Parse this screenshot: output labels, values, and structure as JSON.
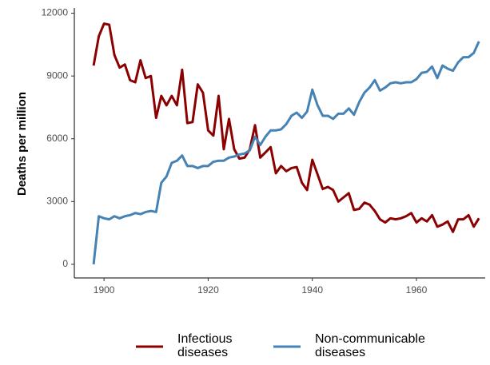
{
  "chart_data": {
    "type": "line",
    "ylabel": "Deaths per million",
    "x": [
      1898,
      1899,
      1900,
      1901,
      1902,
      1903,
      1904,
      1905,
      1906,
      1907,
      1908,
      1909,
      1910,
      1911,
      1912,
      1913,
      1914,
      1915,
      1916,
      1917,
      1918,
      1919,
      1920,
      1921,
      1922,
      1923,
      1924,
      1925,
      1926,
      1927,
      1928,
      1929,
      1930,
      1931,
      1932,
      1933,
      1934,
      1935,
      1936,
      1937,
      1938,
      1939,
      1940,
      1941,
      1942,
      1943,
      1944,
      1945,
      1946,
      1947,
      1948,
      1949,
      1950,
      1951,
      1952,
      1953,
      1954,
      1955,
      1956,
      1957,
      1958,
      1959,
      1960,
      1961,
      1962,
      1963,
      1964,
      1965,
      1966,
      1967,
      1968,
      1969,
      1970,
      1971,
      1972
    ],
    "series": [
      {
        "name": "Infectious diseases",
        "color": "#8b0000",
        "values": [
          9500,
          10900,
          11500,
          11450,
          10000,
          9400,
          9550,
          8800,
          8700,
          9750,
          8900,
          9000,
          7000,
          8050,
          7600,
          8050,
          7600,
          9300,
          6750,
          6800,
          8600,
          8200,
          6400,
          6150,
          8050,
          5500,
          6950,
          5500,
          5050,
          5100,
          5500,
          6650,
          5100,
          5350,
          5600,
          4350,
          4700,
          4450,
          4600,
          4650,
          3900,
          3550,
          5000,
          4300,
          3600,
          3700,
          3550,
          3000,
          3200,
          3400,
          2600,
          2650,
          2950,
          2850,
          2550,
          2150,
          2000,
          2200,
          2150,
          2200,
          2300,
          2450,
          2000,
          2200,
          2050,
          2350,
          1800,
          1900,
          2050,
          1550,
          2150,
          2150,
          2350,
          1800,
          2200
        ]
      },
      {
        "name": "Non-communicable diseases",
        "color": "#4682b4",
        "values": [
          0,
          2300,
          2200,
          2150,
          2300,
          2200,
          2300,
          2350,
          2450,
          2400,
          2500,
          2550,
          2500,
          3900,
          4200,
          4850,
          4950,
          5200,
          4700,
          4700,
          4600,
          4700,
          4700,
          4900,
          4950,
          4950,
          5100,
          5150,
          5250,
          5300,
          5450,
          6100,
          5700,
          6100,
          6400,
          6400,
          6450,
          6700,
          7100,
          7250,
          7000,
          7300,
          8350,
          7600,
          7100,
          7100,
          6950,
          7200,
          7200,
          7450,
          7150,
          7750,
          8200,
          8450,
          8800,
          8300,
          8450,
          8650,
          8700,
          8650,
          8700,
          8700,
          8850,
          9150,
          9200,
          9450,
          8900,
          9500,
          9350,
          9250,
          9650,
          9900,
          9900,
          10100,
          10650
        ]
      }
    ],
    "xlim": [
      1894.3,
      1973.2
    ],
    "xticks": [
      1900,
      1920,
      1940,
      1960
    ],
    "ylim": [
      -650,
      12250
    ],
    "yticks": [
      0,
      3000,
      6000,
      9000,
      12000
    ],
    "legend": "bottom"
  }
}
